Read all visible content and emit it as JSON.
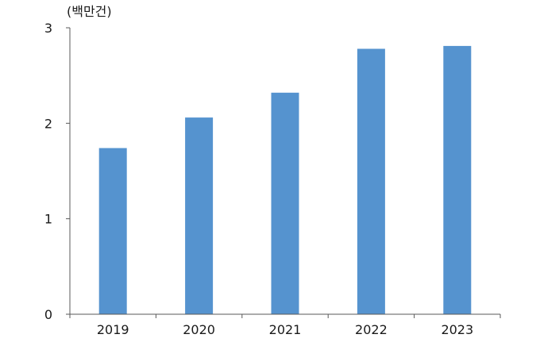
{
  "chart_data": {
    "type": "bar",
    "title": "",
    "unit_label": "(백만건)",
    "xlabel": "",
    "ylabel": "",
    "categories": [
      "2019",
      "2020",
      "2021",
      "2022",
      "2023"
    ],
    "values": [
      1.74,
      2.06,
      2.32,
      2.78,
      2.81
    ],
    "ylim": [
      0,
      3
    ],
    "yticks": [
      "0",
      "1",
      "2",
      "3"
    ],
    "grid": false,
    "legend": "none",
    "bar_color": "#5593CF",
    "axis_color": "#595959"
  }
}
